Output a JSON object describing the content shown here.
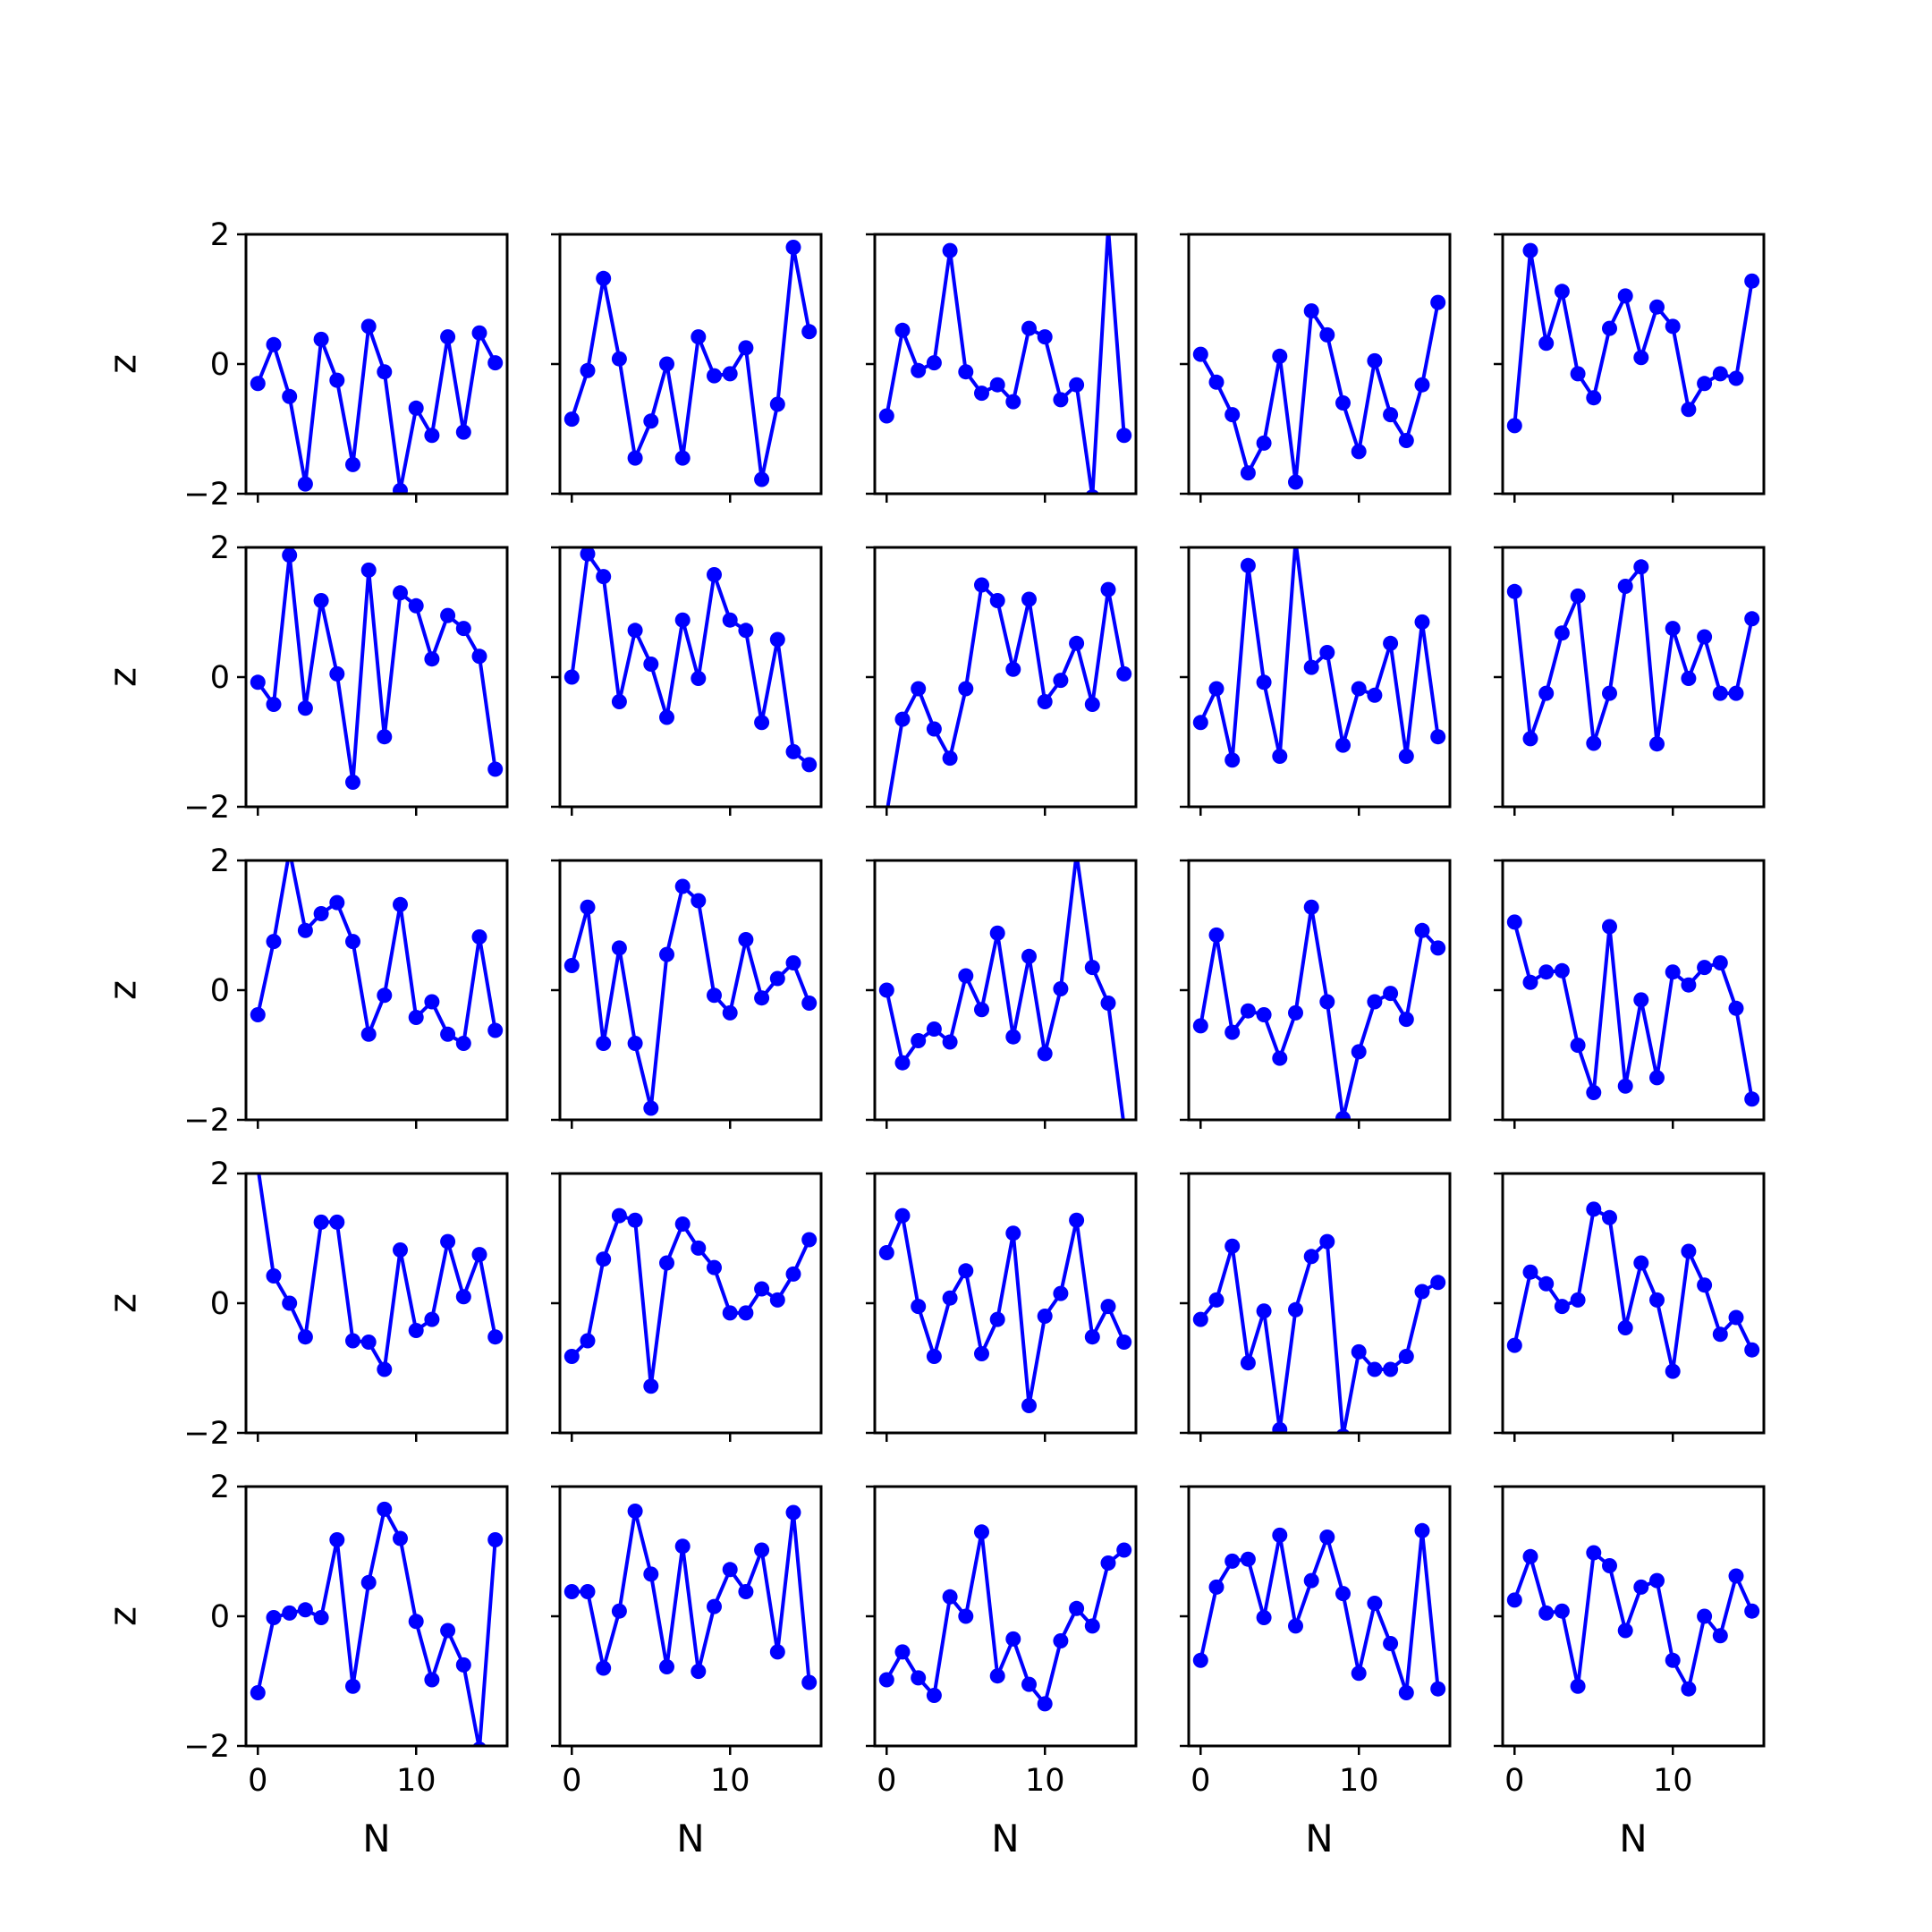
{
  "chart_data": {
    "type": "line",
    "layout": {
      "rows": 5,
      "cols": 5,
      "sharex": true,
      "sharey": true
    },
    "xlabel": "N",
    "ylabel": "z",
    "xlim": [
      -0.75,
      15.75
    ],
    "ylim": [
      -2,
      2
    ],
    "xticks": [
      0,
      10
    ],
    "yticks": [
      -2,
      0,
      2
    ],
    "ytick_labels": [
      "−2",
      "0",
      "2"
    ],
    "line_color": "#0000ff",
    "marker": "circle",
    "x": [
      0,
      1,
      2,
      3,
      4,
      5,
      6,
      7,
      8,
      9,
      10,
      11,
      12,
      13,
      14,
      15
    ],
    "panels": [
      [
        -0.3,
        0.3,
        -0.5,
        -1.85,
        0.38,
        -0.25,
        -1.55,
        0.58,
        -0.12,
        -1.95,
        -0.68,
        -1.1,
        0.42,
        -1.05,
        0.48,
        0.02
      ],
      [
        -0.85,
        -0.1,
        1.32,
        0.08,
        -1.45,
        -0.88,
        0.0,
        -1.45,
        0.42,
        -0.18,
        -0.15,
        0.25,
        -1.78,
        -0.62,
        1.8,
        0.5
      ],
      [
        -0.8,
        0.52,
        -0.1,
        0.02,
        1.75,
        -0.12,
        -0.45,
        -0.32,
        -0.58,
        0.55,
        0.42,
        -0.55,
        -0.32,
        -2.05,
        2.1,
        -1.1
      ],
      [
        0.15,
        -0.28,
        -0.78,
        -1.68,
        -1.22,
        0.12,
        -1.82,
        0.82,
        0.45,
        -0.6,
        -1.35,
        0.05,
        -0.78,
        -1.18,
        -0.32,
        0.95
      ],
      [
        -0.95,
        1.75,
        0.32,
        1.12,
        -0.15,
        -0.52,
        0.55,
        1.05,
        0.1,
        0.88,
        0.58,
        -0.7,
        -0.3,
        -0.15,
        -0.22,
        1.28
      ],
      [
        -0.08,
        -0.42,
        1.88,
        -0.48,
        1.18,
        0.05,
        -1.62,
        1.65,
        -0.92,
        1.3,
        1.1,
        0.28,
        0.95,
        0.75,
        0.32,
        -1.42
      ],
      [
        0.0,
        1.9,
        1.55,
        -0.38,
        0.72,
        0.2,
        -0.62,
        0.88,
        -0.02,
        1.58,
        0.88,
        0.72,
        -0.7,
        0.58,
        -1.15,
        -1.35
      ],
      [
        -2.1,
        -0.65,
        -0.18,
        -0.8,
        -1.25,
        -0.18,
        1.42,
        1.18,
        0.12,
        1.2,
        -0.38,
        -0.05,
        0.52,
        -0.42,
        1.35,
        0.05
      ],
      [
        -0.7,
        -0.18,
        -1.28,
        1.72,
        -0.08,
        -1.22,
        2.1,
        0.15,
        0.38,
        -1.05,
        -0.18,
        -0.28,
        0.52,
        -1.22,
        0.85,
        -0.92
      ],
      [
        1.32,
        -0.95,
        -0.25,
        0.68,
        1.25,
        -1.02,
        -0.25,
        1.4,
        1.7,
        -1.03,
        0.75,
        -0.02,
        0.62,
        -0.25,
        -0.25,
        0.9
      ],
      [
        -0.38,
        0.75,
        2.15,
        0.92,
        1.18,
        1.35,
        0.75,
        -0.68,
        -0.08,
        1.32,
        -0.42,
        -0.18,
        -0.68,
        -0.82,
        0.82,
        -0.62
      ],
      [
        0.38,
        1.28,
        -0.82,
        0.65,
        -0.82,
        -1.82,
        0.55,
        1.6,
        1.38,
        -0.08,
        -0.35,
        0.78,
        -0.12,
        0.18,
        0.42,
        -0.2
      ],
      [
        0.0,
        -1.12,
        -0.78,
        -0.6,
        -0.8,
        0.22,
        -0.3,
        0.88,
        -0.72,
        0.52,
        -0.98,
        0.02,
        2.1,
        0.35,
        -0.2,
        -2.1
      ],
      [
        -0.55,
        0.85,
        -0.65,
        -0.32,
        -0.38,
        -1.05,
        -0.35,
        1.28,
        -0.18,
        -1.98,
        -0.95,
        -0.18,
        -0.05,
        -0.45,
        0.92,
        0.65
      ],
      [
        1.05,
        0.12,
        0.28,
        0.3,
        -0.85,
        -1.58,
        0.98,
        -1.48,
        -0.15,
        -1.35,
        0.28,
        0.08,
        0.35,
        0.42,
        -0.28,
        -1.68
      ],
      [
        2.1,
        0.42,
        0.0,
        -0.52,
        1.25,
        1.25,
        -0.58,
        -0.6,
        -1.02,
        0.82,
        -0.42,
        -0.25,
        0.95,
        0.1,
        0.75,
        -0.52
      ],
      [
        -0.82,
        -0.58,
        0.68,
        1.35,
        1.28,
        -1.28,
        0.62,
        1.22,
        0.85,
        0.55,
        -0.15,
        -0.15,
        0.22,
        0.05,
        0.45,
        0.98
      ],
      [
        0.78,
        1.35,
        -0.05,
        -0.82,
        0.08,
        0.5,
        -0.78,
        -0.25,
        1.08,
        -1.58,
        -0.2,
        0.15,
        1.28,
        -0.52,
        -0.05,
        -0.6
      ],
      [
        -0.25,
        0.05,
        0.88,
        -0.92,
        -0.12,
        -1.95,
        -0.1,
        0.72,
        0.95,
        -2.05,
        -0.75,
        -1.02,
        -1.02,
        -0.82,
        0.18,
        0.32
      ],
      [
        -0.65,
        0.48,
        0.3,
        -0.05,
        0.05,
        1.45,
        1.32,
        -0.38,
        0.62,
        0.05,
        -1.05,
        0.8,
        0.28,
        -0.48,
        -0.22,
        -0.72
      ],
      [
        -1.18,
        -0.02,
        0.05,
        0.1,
        -0.02,
        1.18,
        -1.08,
        0.52,
        1.65,
        1.2,
        -0.08,
        -0.98,
        -0.22,
        -0.75,
        -2.05,
        1.18
      ],
      [
        0.38,
        0.38,
        -0.8,
        0.08,
        1.62,
        0.65,
        -0.78,
        1.08,
        -0.85,
        0.15,
        0.72,
        0.38,
        1.02,
        -0.55,
        1.6,
        -1.02
      ],
      [
        -0.98,
        -0.55,
        -0.95,
        -1.22,
        0.3,
        0.0,
        1.3,
        -0.92,
        -0.35,
        -1.05,
        -1.35,
        -0.38,
        0.12,
        -0.15,
        0.82,
        1.02
      ],
      [
        -0.68,
        0.45,
        0.85,
        0.88,
        -0.02,
        1.25,
        -0.15,
        0.55,
        1.22,
        0.35,
        -0.88,
        0.2,
        -0.42,
        -1.18,
        1.32,
        -1.12
      ],
      [
        0.25,
        0.92,
        0.05,
        0.08,
        -1.08,
        0.98,
        0.78,
        -0.22,
        0.45,
        0.55,
        -0.68,
        -1.12,
        0.0,
        -0.3,
        0.62,
        0.08
      ]
    ]
  }
}
